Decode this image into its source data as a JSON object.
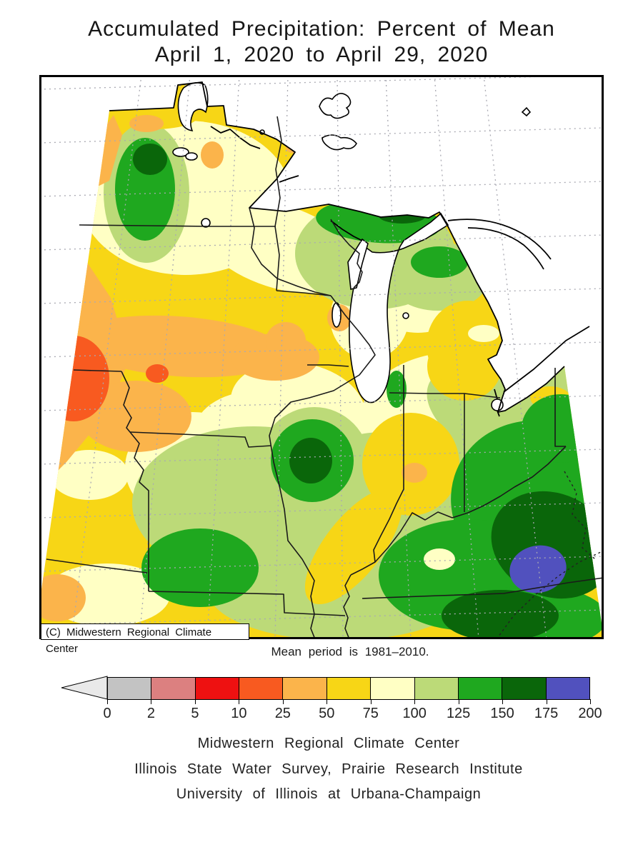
{
  "title": {
    "line1": "Accumulated Precipitation: Percent of Mean",
    "line2": "April 1, 2020 to April 29, 2020"
  },
  "map": {
    "copyright": "(C) Midwestern Regional Climate Center",
    "note": "Mean period is 1981–2010."
  },
  "legend": {
    "tick_labels": [
      "0",
      "2",
      "5",
      "10",
      "25",
      "50",
      "75",
      "100",
      "125",
      "150",
      "175",
      "200"
    ],
    "segment_colors": [
      "#C3C3C3",
      "#DC8080",
      "#EE1111",
      "#F85A20",
      "#FBB44B",
      "#F7D616",
      "#FFFFC4",
      "#BCDA78",
      "#1FA81F",
      "#0A660A",
      "#5151BE"
    ],
    "arrow_color": "#E9E9E9",
    "units": "percent of mean precipitation"
  },
  "footer": {
    "line1": "Midwestern Regional Climate Center",
    "line2": "Illinois State Water Survey, Prairie Research Institute",
    "line3": "University of Illinois at Urbana-Champaign"
  },
  "palette": {
    "yellow": "#F7D616",
    "cream": "#FFFFC4",
    "lgreen": "#BCDA78",
    "green": "#1FA81F",
    "dgreen": "#0A660A",
    "blue": "#5151BE",
    "orange": "#FBB44B",
    "rorange": "#F85A20",
    "red": "#EE1111",
    "rose": "#DC8080",
    "gray": "#C3C3C3"
  }
}
